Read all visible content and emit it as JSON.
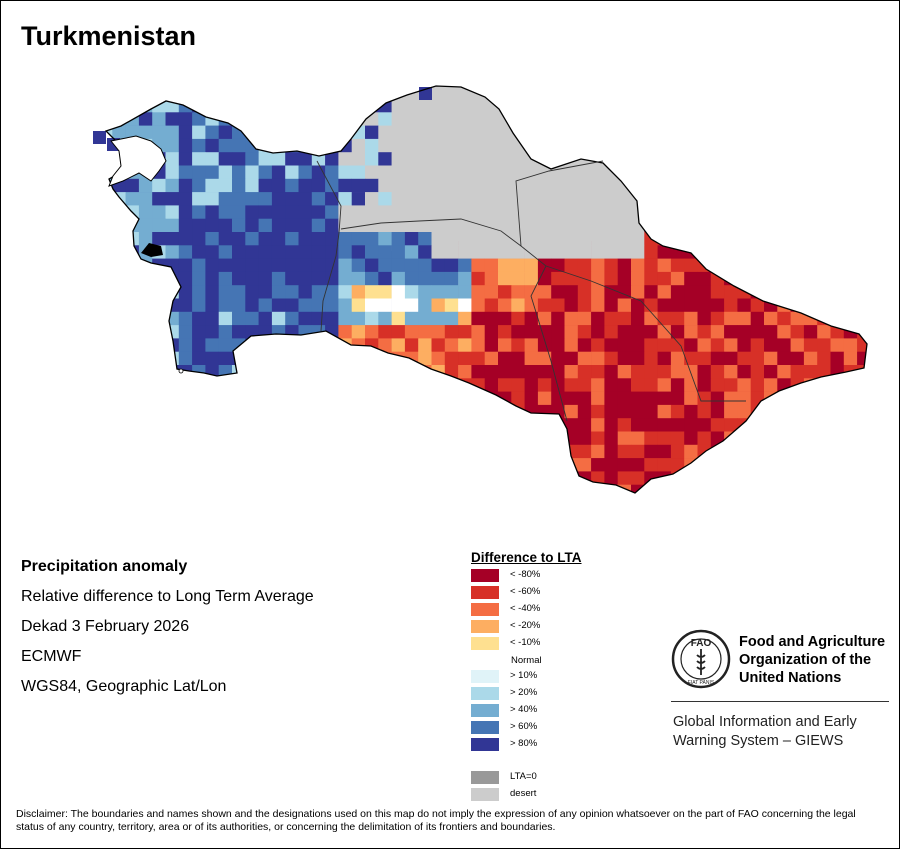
{
  "title": "Turkmenistan",
  "info": {
    "heading": "Precipitation anomaly",
    "line1": "Relative difference to Long Term Average",
    "line2": "Dekad 3 February 2026",
    "line3": "ECMWF",
    "line4": "WGS84, Geographic Lat/Lon"
  },
  "legend": {
    "title": "Difference to LTA",
    "items": [
      {
        "label": "< -80%",
        "color": "#a50026"
      },
      {
        "label": "< -60%",
        "color": "#d73027"
      },
      {
        "label": "< -40%",
        "color": "#f46d43"
      },
      {
        "label": "< -20%",
        "color": "#fdae61"
      },
      {
        "label": "< -10%",
        "color": "#fee090"
      }
    ],
    "normal_label": "Normal",
    "wet_items": [
      {
        "label": "> 10%",
        "color": "#e0f3f8"
      },
      {
        "label": "> 20%",
        "color": "#abd9e9"
      },
      {
        "label": "> 40%",
        "color": "#74add1"
      },
      {
        "label": "> 60%",
        "color": "#4575b4"
      },
      {
        "label": "> 80%",
        "color": "#313695"
      }
    ],
    "lta0": {
      "label": "LTA=0",
      "color": "#999999"
    },
    "desert": {
      "label": "desert",
      "color": "#cccccc"
    }
  },
  "fao": {
    "name_line1": "Food and Agriculture",
    "name_line2": "Organization of the",
    "name_line3": "United Nations",
    "giews_line1": "Global Information and Early",
    "giews_line2": "Warning System – GIEWS",
    "logo_letters": "FAO",
    "logo_motto": "FIAT PANIS"
  },
  "disclaimer": "Disclaimer: The boundaries and names shown and the designations used on this map do not imply the expression of any opinion whatsoever on the part of FAO concerning the legal status of any country, territory, area or of its authorities, or concerning the delimitation of its frontiers and boundaries.",
  "map": {
    "description": "precipitation anomaly grid",
    "zones": [
      {
        "category": "> 80%",
        "color": "#313695"
      },
      {
        "category": "> 60%",
        "color": "#4575b4"
      },
      {
        "category": "> 40%",
        "color": "#74add1"
      },
      {
        "category": "> 20%",
        "color": "#abd9e9"
      },
      {
        "category": "desert",
        "color": "#cccccc"
      },
      {
        "category": "< -80%",
        "color": "#a50026"
      },
      {
        "category": "< -60%",
        "color": "#d73027"
      },
      {
        "category": "< -40%",
        "color": "#f46d43"
      },
      {
        "category": "< -20%",
        "color": "#fdae61"
      },
      {
        "category": "< -10%",
        "color": "#fee090"
      }
    ]
  }
}
